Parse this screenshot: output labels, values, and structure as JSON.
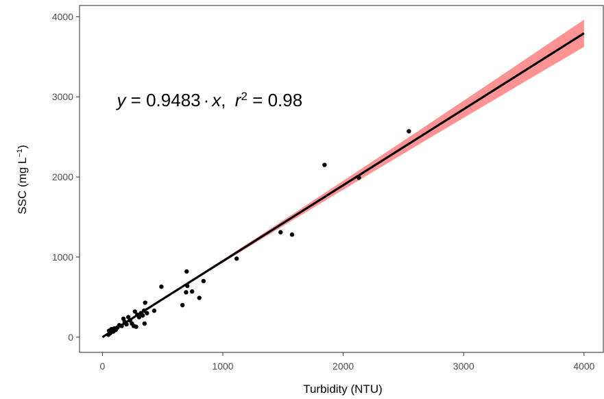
{
  "chart_data": {
    "type": "scatter",
    "xlabel": "Turbidity (NTU)",
    "ylabel": {
      "prefix": "SSC (mg L",
      "sup": "−1",
      "suffix": ")"
    },
    "xlim": [
      -190,
      4160
    ],
    "ylim": [
      -190,
      4140
    ],
    "x_ticks": [
      0,
      1000,
      2000,
      3000,
      4000
    ],
    "y_ticks": [
      0,
      1000,
      2000,
      3000,
      4000
    ],
    "x_tick_labels": [
      "0",
      "1000",
      "2000",
      "3000",
      "4000"
    ],
    "y_tick_labels": [
      "0",
      "1000",
      "2000",
      "3000",
      "4000"
    ],
    "grid": false,
    "annotation": {
      "y_var": "y",
      "equals": "=",
      "coefficient": "0.9483",
      "dot": "·",
      "x_var": "x",
      "comma": ",",
      "r_var": "r",
      "r_sup": "2",
      "r_equals": "=",
      "r_value": "0.98",
      "position_data": [
        120,
        2880
      ]
    },
    "fit": {
      "slope": 0.9483,
      "x_range": [
        0,
        4000
      ],
      "ci_half_width_at_4000": 170,
      "line_color": "#000000",
      "band_color": "#ff7f7f"
    },
    "points": [
      {
        "x": 50,
        "y": 30
      },
      {
        "x": 55,
        "y": 80
      },
      {
        "x": 65,
        "y": 50
      },
      {
        "x": 75,
        "y": 100
      },
      {
        "x": 90,
        "y": 70
      },
      {
        "x": 100,
        "y": 110
      },
      {
        "x": 110,
        "y": 90
      },
      {
        "x": 125,
        "y": 120
      },
      {
        "x": 140,
        "y": 150
      },
      {
        "x": 160,
        "y": 140
      },
      {
        "x": 175,
        "y": 230
      },
      {
        "x": 185,
        "y": 190
      },
      {
        "x": 200,
        "y": 160
      },
      {
        "x": 215,
        "y": 250
      },
      {
        "x": 230,
        "y": 210
      },
      {
        "x": 245,
        "y": 170
      },
      {
        "x": 260,
        "y": 140
      },
      {
        "x": 270,
        "y": 320
      },
      {
        "x": 280,
        "y": 130
      },
      {
        "x": 290,
        "y": 280
      },
      {
        "x": 305,
        "y": 250
      },
      {
        "x": 320,
        "y": 300
      },
      {
        "x": 335,
        "y": 270
      },
      {
        "x": 345,
        "y": 330
      },
      {
        "x": 350,
        "y": 170
      },
      {
        "x": 355,
        "y": 430
      },
      {
        "x": 370,
        "y": 300
      },
      {
        "x": 430,
        "y": 330
      },
      {
        "x": 490,
        "y": 630
      },
      {
        "x": 665,
        "y": 400
      },
      {
        "x": 695,
        "y": 560
      },
      {
        "x": 700,
        "y": 820
      },
      {
        "x": 705,
        "y": 640
      },
      {
        "x": 745,
        "y": 570
      },
      {
        "x": 805,
        "y": 490
      },
      {
        "x": 840,
        "y": 700
      },
      {
        "x": 1115,
        "y": 980
      },
      {
        "x": 1480,
        "y": 1310
      },
      {
        "x": 1575,
        "y": 1280
      },
      {
        "x": 1845,
        "y": 2150
      },
      {
        "x": 2130,
        "y": 1990
      },
      {
        "x": 2545,
        "y": 2570
      }
    ],
    "point_color": "#000000",
    "panel_border_color": "#4d4d4d"
  }
}
